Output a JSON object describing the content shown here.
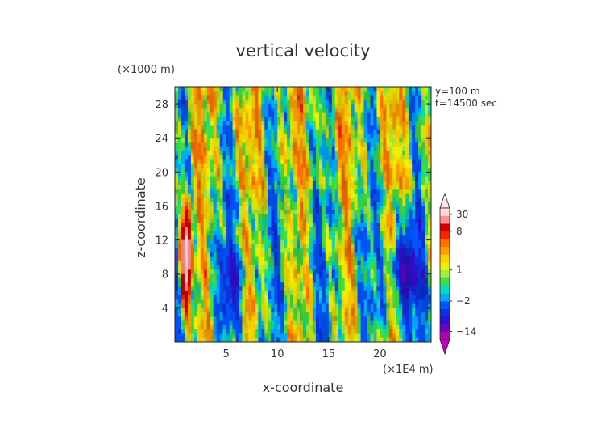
{
  "chart_data": {
    "type": "heatmap",
    "title": "vertical velocity",
    "xlabel": "x-coordinate",
    "ylabel": "z-coordinate",
    "x_unit_label": "(×1E4 m)",
    "y_unit_label": "(×1000 m)",
    "info_lines": [
      "y=100 m",
      "t=14500 sec"
    ],
    "xlim": [
      0,
      25
    ],
    "ylim": [
      0,
      30
    ],
    "x_ticks": [
      5,
      10,
      15,
      20
    ],
    "y_ticks": [
      4,
      8,
      12,
      16,
      20,
      24,
      28
    ],
    "colorbar": {
      "labels": [
        {
          "text": "30",
          "value": 30
        },
        {
          "text": "8",
          "value": 8
        },
        {
          "text": "1",
          "value": 1
        },
        {
          "text": "−2",
          "value": -2
        },
        {
          "text": "−14",
          "value": -14
        }
      ],
      "levels": [
        -30,
        -14,
        -10,
        -6,
        -4,
        -2,
        -1,
        -0.5,
        0.5,
        1,
        2,
        3,
        4,
        6,
        8,
        14,
        20,
        30
      ],
      "colors": [
        "#b000b0",
        "#7000c0",
        "#3010d0",
        "#1030e0",
        "#0055ff",
        "#00aaff",
        "#00e0c0",
        "#40e040",
        "#a0f040",
        "#f0f000",
        "#ffd000",
        "#ffa000",
        "#ff7000",
        "#ff2000",
        "#d00000",
        "#ff9090",
        "#ffd8d8"
      ]
    }
  }
}
